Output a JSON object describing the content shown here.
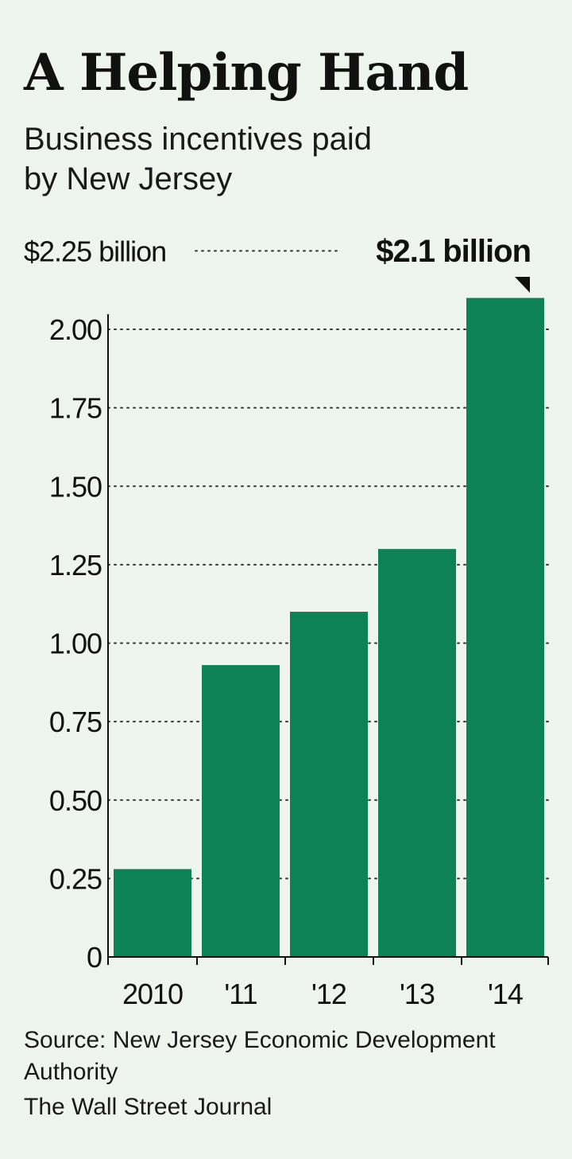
{
  "title": "A Helping Hand",
  "subtitle": "Business incentives paid by New Jersey",
  "source": "Source: New Jersey Economic Development Authority",
  "credit": "The Wall Street Journal",
  "colors": {
    "bar": "#0c8256",
    "text": "#111111",
    "background": "#eef5ee",
    "gridline": "#333333"
  },
  "chart_data": {
    "type": "bar",
    "categories": [
      "2010",
      "'11",
      "'12",
      "'13",
      "'14"
    ],
    "values": [
      0.28,
      0.93,
      1.1,
      1.3,
      2.1
    ],
    "ylim": [
      0,
      2.25
    ],
    "yticks": [
      0,
      0.25,
      0.5,
      0.75,
      1.0,
      1.25,
      1.5,
      1.75,
      2.0,
      2.25
    ],
    "ytick_labels": [
      "0",
      "0.25",
      "0.50",
      "0.75",
      "1.00",
      "1.25",
      "1.50",
      "1.75",
      "2.00",
      "$2.25 billion"
    ],
    "grid": true,
    "annotation": {
      "category": "'14",
      "text": "$2.1 billion"
    }
  }
}
